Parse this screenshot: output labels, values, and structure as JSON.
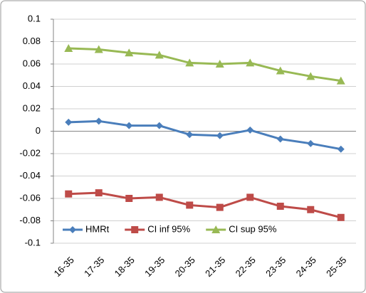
{
  "chart_data": {
    "type": "line",
    "categories": [
      "16-35",
      "17-35",
      "18-35",
      "19-35",
      "20-35",
      "21-35",
      "22-35",
      "23-35",
      "24-35",
      "25-35"
    ],
    "series": [
      {
        "name": "HMRt",
        "color": "#4a7ebb",
        "marker": "diamond",
        "values": [
          0.008,
          0.009,
          0.005,
          0.005,
          -0.003,
          -0.004,
          0.001,
          -0.007,
          -0.011,
          -0.016
        ]
      },
      {
        "name": "CI inf 95%",
        "color": "#be4b48",
        "marker": "square",
        "values": [
          -0.056,
          -0.055,
          -0.06,
          -0.059,
          -0.066,
          -0.068,
          -0.059,
          -0.067,
          -0.07,
          -0.077
        ]
      },
      {
        "name": "CI sup 95%",
        "color": "#98b954",
        "marker": "triangle",
        "values": [
          0.074,
          0.073,
          0.07,
          0.068,
          0.061,
          0.06,
          0.061,
          0.054,
          0.049,
          0.045
        ]
      }
    ],
    "ylim": [
      -0.1,
      0.1
    ],
    "yticks": [
      -0.1,
      -0.08,
      -0.06,
      -0.04,
      -0.02,
      0,
      0.02,
      0.04,
      0.06,
      0.08,
      0.1
    ],
    "grid": true,
    "legend": "bottom"
  }
}
